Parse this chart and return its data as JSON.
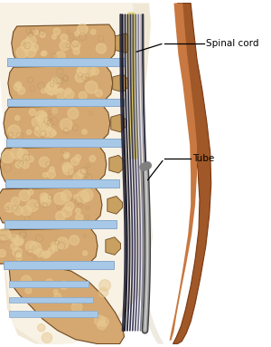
{
  "bg_color": "#ffffff",
  "labels": {
    "spinal_cord": "Spinal cord",
    "tube": "Tube"
  },
  "colors": {
    "vertebra_body": "#D4A870",
    "vertebra_body_light": "#E8C990",
    "vertebra_texture": "#B89060",
    "disc": "#A8C8E8",
    "disc_dark": "#88A8C8",
    "skin_brown": "#A05828",
    "skin_light": "#C87840",
    "body_bg": "#F5EDD8",
    "spinal_canal_bg": "#E8E4D8",
    "cord_dark1": "#1A1A28",
    "cord_dark2": "#2A2840",
    "cord_mid": "#4A4860",
    "cord_light": "#8A8898",
    "cord_yellow": "#D8C858",
    "cord_cream": "#E8D890",
    "tube_dark": "#585858",
    "tube_mid": "#989898",
    "tube_light": "#C8C8C8",
    "outline_dark": "#704820",
    "outline_med": "#8B6030",
    "posterior_bone": "#C8A060",
    "ligament_dark": "#3A3850",
    "ligament_light": "#6A6880"
  },
  "figure_size": [
    3.0,
    3.83
  ],
  "dpi": 100
}
